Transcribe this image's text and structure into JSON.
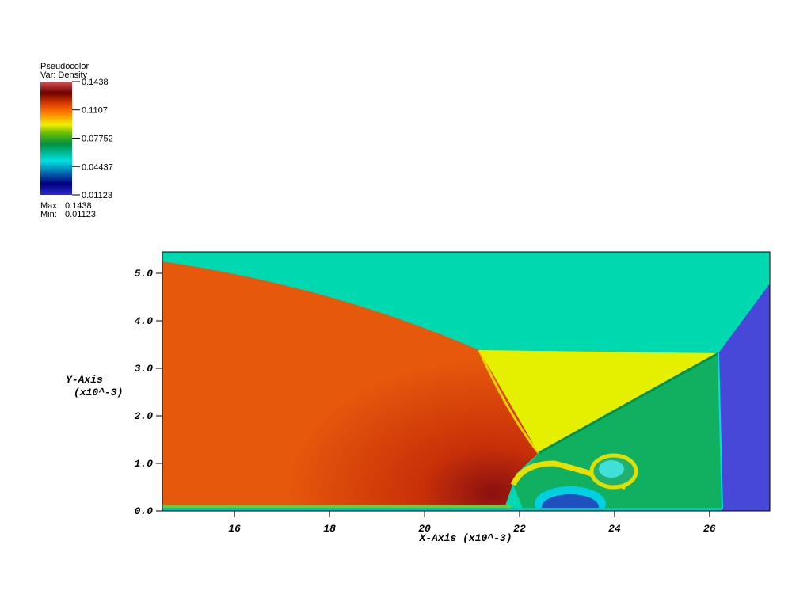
{
  "chart_data": {
    "type": "pseudocolor",
    "legend": {
      "title": "Pseudocolor",
      "variable": "Var: Density",
      "ticks": [
        0.1438,
        0.1107,
        0.07752,
        0.04437,
        0.01123
      ],
      "range": [
        0.01123,
        0.1438
      ],
      "max": {
        "label": "Max:",
        "value": 0.1438
      },
      "min": {
        "label": "Min:",
        "value": 0.01123
      }
    },
    "xlabel": "X-Axis (x10^-3)",
    "ylabel": [
      "Y-Axis",
      "(x10^-3)"
    ],
    "xlim": [
      14.48,
      27.27
    ],
    "ylim": [
      0,
      5.45
    ],
    "xticks": [
      16,
      18,
      20,
      22,
      24,
      26
    ],
    "yticks": [
      {
        "value": 0,
        "label": "0.0"
      },
      {
        "value": 1,
        "label": "1.0"
      },
      {
        "value": 2,
        "label": "2.0"
      },
      {
        "value": 3,
        "label": "3.0"
      },
      {
        "value": 4,
        "label": "4.0"
      },
      {
        "value": 5,
        "label": "5.0"
      }
    ]
  }
}
